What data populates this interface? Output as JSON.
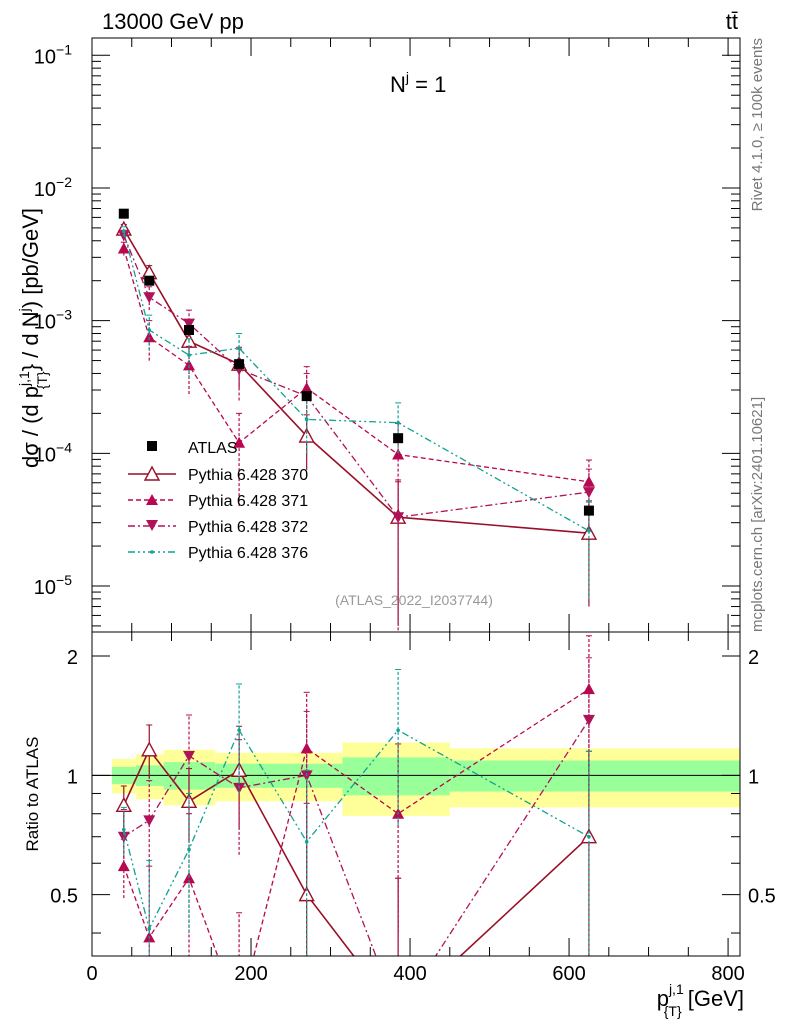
{
  "header": {
    "energy_label": "13000 GeV pp",
    "process_label": "tt̄"
  },
  "side_labels": {
    "rivet": "Rivet 4.1.0, ≥ 100k events",
    "mcplots": "mcplots.cern.ch [arXiv:2401.10621]"
  },
  "watermark": "(ATLAS_2022_I2037744)",
  "annotation": {
    "base": "N",
    "sup": "j",
    "rest": " = 1"
  },
  "colors": {
    "atlas": "#000000",
    "p370": "#990f27",
    "p371": "#b8074f",
    "p372": "#b0125a",
    "p376": "#10a293",
    "band_inner": "#99ff99",
    "band_outer": "#ffff99"
  },
  "chart_data": [
    {
      "type": "scatter",
      "title": "",
      "ylabel_text": "dσ / (d p",
      "ylabel_sup": "j,1",
      "ylabel_sub": "{T}",
      "ylabel_mid": "} / d N",
      "ylabel_sup2": "j",
      "ylabel_end": ") [pb/GeV]",
      "yscale": "log",
      "ylim": [
        4.5e-06,
        0.135
      ],
      "xlim": [
        0,
        815
      ],
      "ytick_labels": [
        {
          "base": "10",
          "exp": "−5",
          "value": 1e-05
        },
        {
          "base": "10",
          "exp": "−4",
          "value": 0.0001
        },
        {
          "base": "10",
          "exp": "−3",
          "value": 0.001
        },
        {
          "base": "10",
          "exp": "−2",
          "value": 0.01
        },
        {
          "base": "10",
          "exp": "−1",
          "value": 0.1
        }
      ],
      "data": {
        "name": "ATLAS",
        "x": [
          40,
          72,
          122,
          185,
          270,
          385,
          625
        ],
        "y": [
          0.0064,
          0.002,
          0.00085,
          0.00047,
          0.00027,
          0.00013,
          3.7e-05
        ]
      },
      "series": [
        {
          "name": "Pythia 6.428 370",
          "style": "solid",
          "marker": "open-triangle-up",
          "x": [
            40,
            72,
            122,
            185,
            270,
            385,
            625
          ],
          "y": [
            0.0049,
            0.0023,
            0.0007,
            0.00047,
            0.000135,
            3.3e-05,
            2.5e-05
          ],
          "err": [
            0.0004,
            0.0003,
            0.00012,
            0.00016,
            6e-05,
            2.8e-05,
            1.8e-05
          ]
        },
        {
          "name": "Pythia 6.428 371",
          "style": "dashed",
          "marker": "filled-triangle-up",
          "x": [
            40,
            72,
            122,
            185,
            270,
            385,
            625
          ],
          "y": [
            0.0035,
            0.00075,
            0.00046,
            0.00012,
            0.00031,
            9.8e-05,
            6.1e-05
          ],
          "err": [
            0.0004,
            0.00025,
            0.00018,
            8e-05,
            0.00014,
            7e-05,
            2.8e-05
          ]
        },
        {
          "name": "Pythia 6.428 372",
          "style": "dashdot",
          "marker": "filled-triangle-down",
          "x": [
            40,
            72,
            122,
            185,
            270,
            385,
            625
          ],
          "y": [
            0.0044,
            0.0015,
            0.00095,
            0.00043,
            0.00027,
            3.3e-05,
            5.1e-05
          ],
          "err": [
            0.0004,
            0.0003,
            0.00025,
            0.00018,
            0.00013,
            3e-05,
            2.5e-05
          ]
        },
        {
          "name": "Pythia 6.428 376",
          "style": "dashdotdot",
          "marker": "dot",
          "x": [
            40,
            72,
            122,
            185,
            270,
            385,
            625
          ],
          "y": [
            0.0047,
            0.00085,
            0.00055,
            0.00062,
            0.00018,
            0.00017,
            2.6e-05
          ],
          "err": [
            0.0004,
            0.00025,
            0.00018,
            0.00018,
            8e-05,
            7e-05,
            1.8e-05
          ]
        }
      ]
    },
    {
      "type": "line",
      "title": "",
      "ylabel": "Ratio to ATLAS",
      "xlabel_base": "p",
      "xlabel_sup": "j,1",
      "xlabel_sub": "{T}",
      "xlabel_unit": " [GeV]",
      "xlim": [
        0,
        815
      ],
      "ylim": [
        0.35,
        2.3
      ],
      "xtick_labels": [
        "0",
        "200",
        "400",
        "600",
        "800"
      ],
      "xtick_values": [
        0,
        200,
        400,
        600,
        800
      ],
      "ytick_labels": [
        "0.5",
        "1",
        "2"
      ],
      "ytick_values": [
        0.5,
        1,
        2
      ],
      "bands": {
        "edges": [
          25,
          55,
          90,
          155,
          215,
          315,
          450,
          815
        ],
        "inner_lo": [
          0.95,
          0.94,
          0.92,
          0.93,
          0.93,
          0.89,
          0.91
        ],
        "inner_hi": [
          1.05,
          1.06,
          1.08,
          1.07,
          1.07,
          1.11,
          1.09
        ],
        "outer_lo": [
          0.9,
          0.87,
          0.84,
          0.86,
          0.86,
          0.79,
          0.83
        ],
        "outer_hi": [
          1.1,
          1.13,
          1.16,
          1.14,
          1.14,
          1.21,
          1.17
        ]
      },
      "series": [
        {
          "name": "Pythia 6.428 370",
          "x": [
            40,
            72,
            122,
            185,
            270,
            385,
            625
          ],
          "y": [
            0.84,
            1.16,
            0.86,
            1.03,
            0.5,
            0.25,
            0.7
          ],
          "err": [
            0.1,
            0.18,
            0.18,
            0.3,
            0.35,
            0.3,
            0.45
          ]
        },
        {
          "name": "Pythia 6.428 371",
          "x": [
            40,
            72,
            122,
            185,
            270,
            385,
            625
          ],
          "y": [
            0.59,
            0.39,
            0.55,
            0.25,
            1.17,
            0.8,
            1.65
          ],
          "err": [
            0.1,
            0.2,
            0.25,
            0.2,
            0.45,
            0.4,
            0.6
          ]
        },
        {
          "name": "Pythia 6.428 372",
          "x": [
            40,
            72,
            122,
            185,
            270,
            385,
            625
          ],
          "y": [
            0.7,
            0.77,
            1.12,
            0.93,
            1.0,
            0.25,
            1.38
          ],
          "err": [
            0.12,
            0.2,
            0.3,
            0.3,
            0.45,
            0.3,
            0.6
          ]
        },
        {
          "name": "Pythia 6.428 376",
          "x": [
            40,
            72,
            122,
            185,
            270,
            385,
            625
          ],
          "y": [
            0.73,
            0.41,
            0.65,
            1.3,
            0.68,
            1.3,
            0.7
          ],
          "err": [
            0.1,
            0.2,
            0.25,
            0.4,
            0.35,
            0.55,
            0.45
          ]
        }
      ]
    }
  ]
}
